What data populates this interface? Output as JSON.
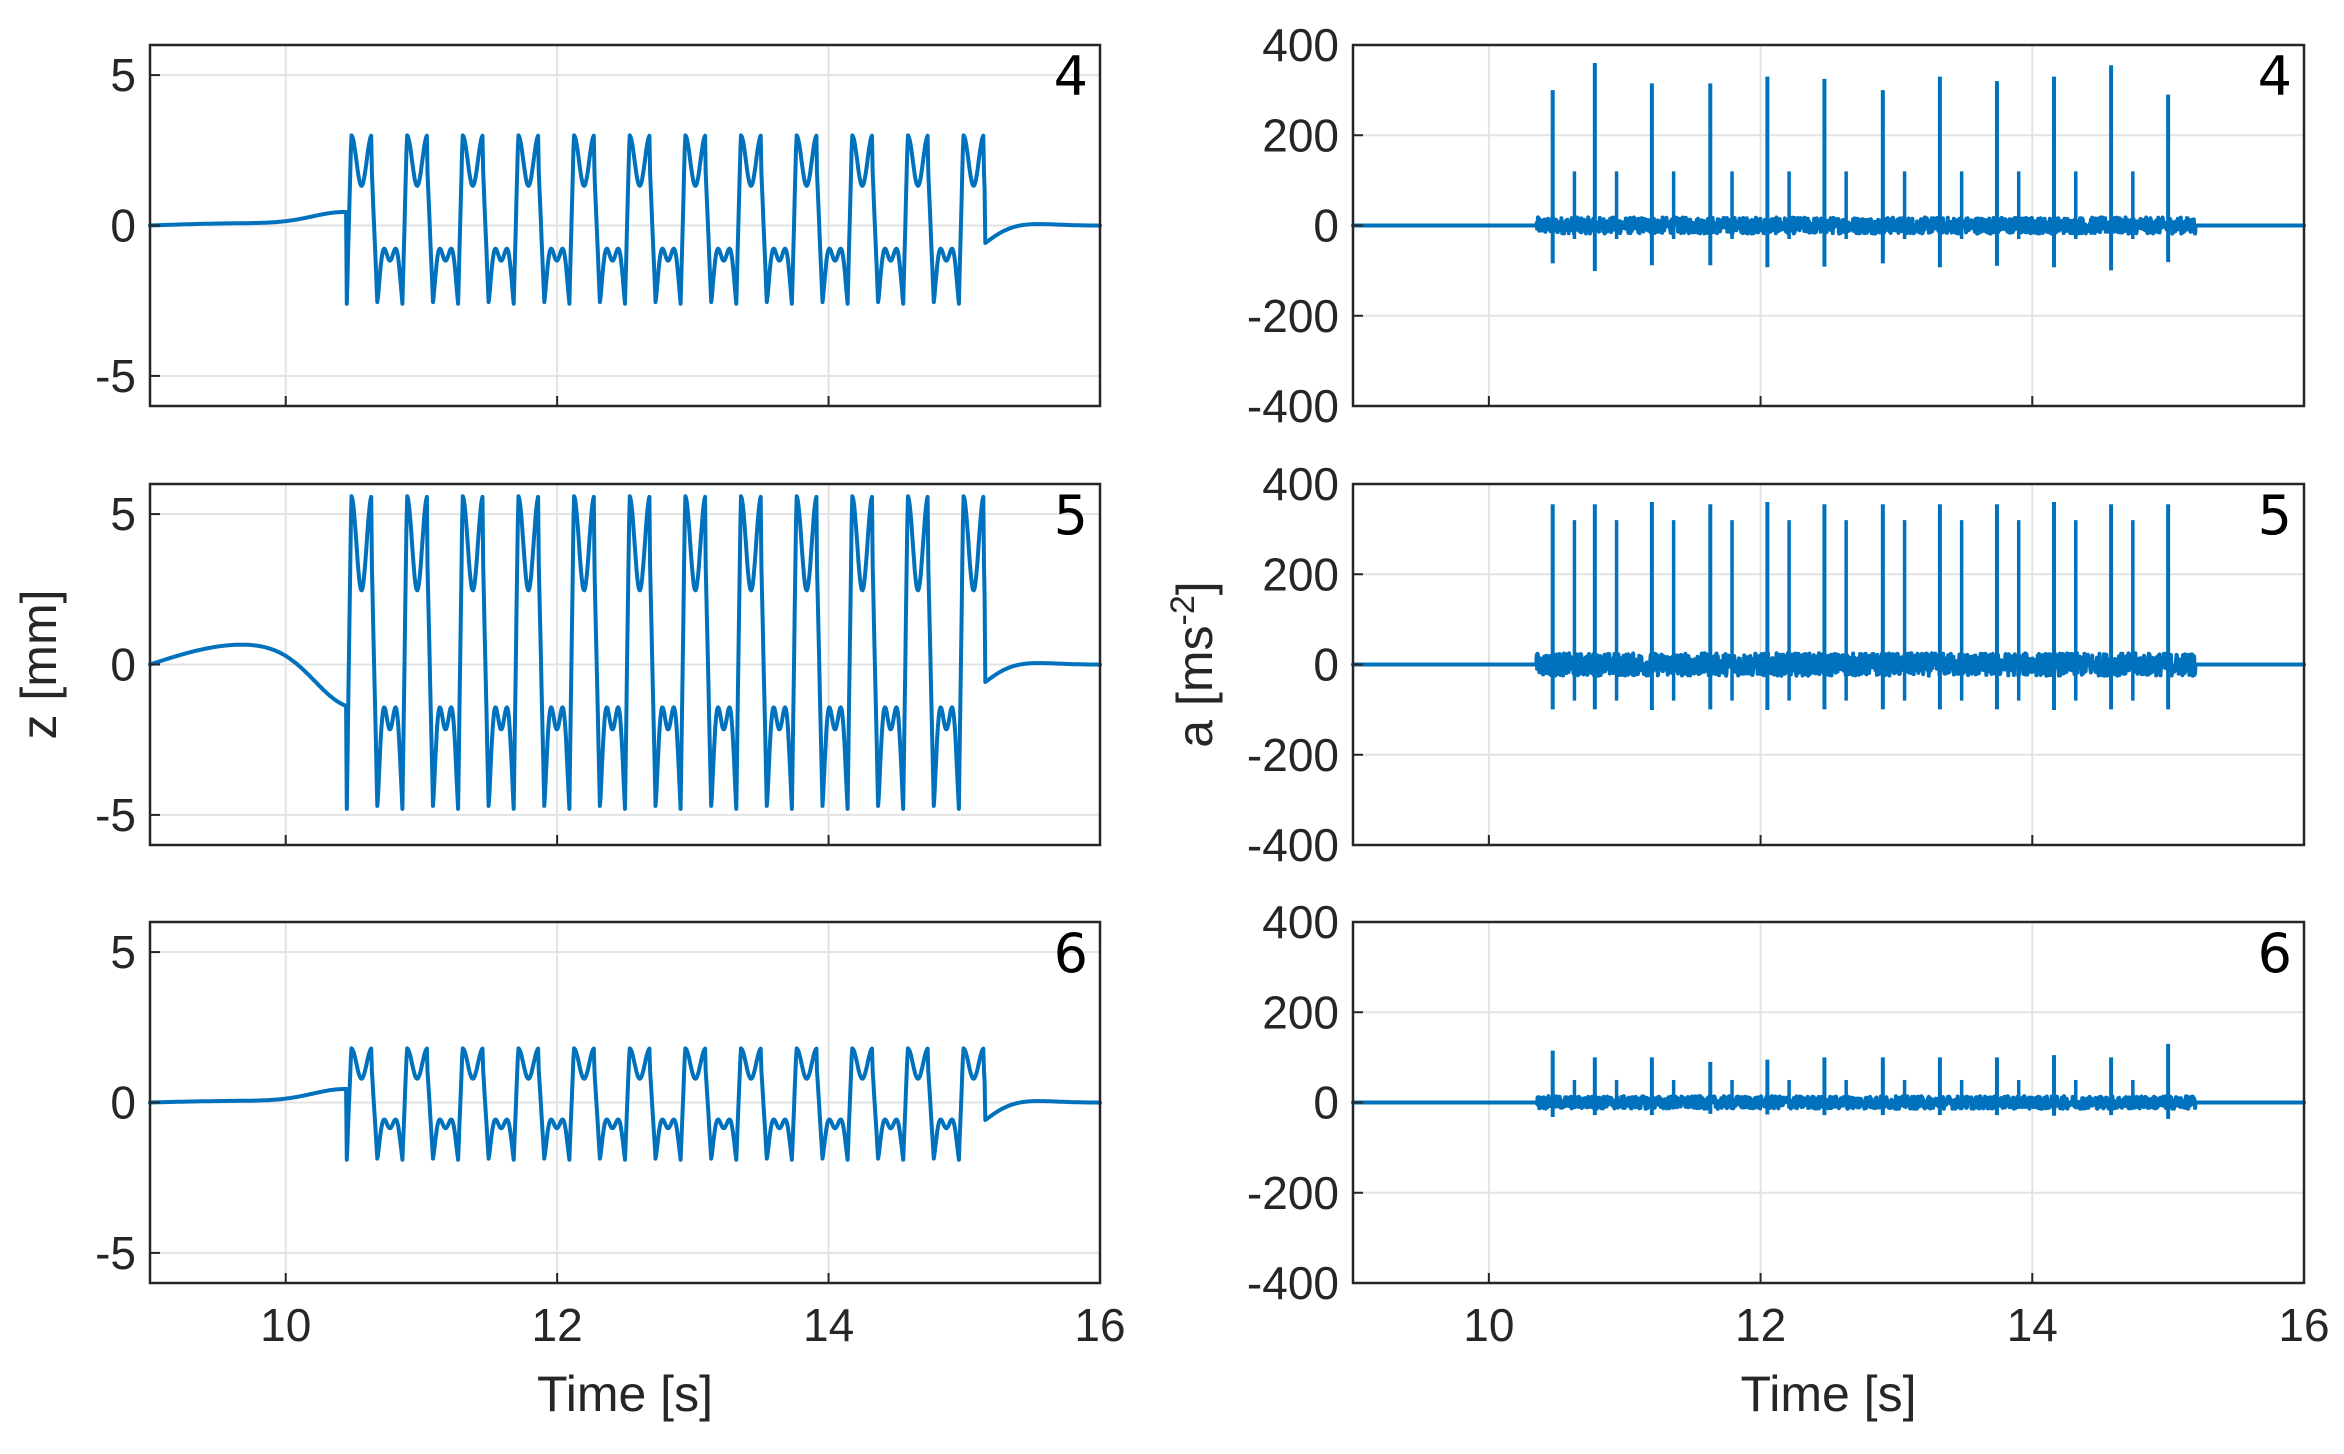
{
  "chart_data": [
    {
      "type": "line",
      "panel": "4",
      "ylabel": "",
      "xlabel": "",
      "xlim": [
        9,
        16
      ],
      "ylim": [
        -6,
        6
      ],
      "yticks": [
        5,
        0,
        -5
      ],
      "ytick_labels": [
        "5",
        "0",
        "-5"
      ],
      "xticks": [
        10,
        12,
        14,
        16
      ],
      "xtick_labels": [],
      "grid": true,
      "series": [
        {
          "name": "z",
          "color": "#0072BD",
          "kind": "disp",
          "amp_pos": 3.0,
          "amp_neg": 2.6,
          "start": 10.45,
          "end": 15.15,
          "period": 0.41
        }
      ]
    },
    {
      "type": "line",
      "panel": "5",
      "ylabel": "z [mm]",
      "xlabel": "",
      "xlim": [
        9,
        16
      ],
      "ylim": [
        -6,
        6
      ],
      "yticks": [
        5,
        0,
        -5
      ],
      "ytick_labels": [
        "5",
        "0",
        "-5"
      ],
      "xticks": [
        10,
        12,
        14,
        16
      ],
      "xtick_labels": [],
      "grid": true,
      "series": [
        {
          "name": "z",
          "color": "#0072BD",
          "kind": "disp",
          "amp_pos": 5.6,
          "amp_neg": 4.8,
          "start": 10.45,
          "end": 15.15,
          "period": 0.41
        }
      ]
    },
    {
      "type": "line",
      "panel": "6",
      "ylabel": "",
      "xlabel": "Time [s]",
      "xlim": [
        9,
        16
      ],
      "ylim": [
        -6,
        6
      ],
      "yticks": [
        5,
        0,
        -5
      ],
      "ytick_labels": [
        "5",
        "0",
        "-5"
      ],
      "xticks": [
        10,
        12,
        14,
        16
      ],
      "xtick_labels": [
        "10",
        "12",
        "14",
        "16"
      ],
      "grid": true,
      "series": [
        {
          "name": "z",
          "color": "#0072BD",
          "kind": "disp",
          "amp_pos": 1.8,
          "amp_neg": 1.9,
          "start": 10.45,
          "end": 15.15,
          "period": 0.41
        }
      ]
    },
    {
      "type": "line",
      "panel": "4",
      "ylabel": "",
      "xlabel": "",
      "xlim": [
        9,
        16
      ],
      "ylim": [
        -400,
        400
      ],
      "yticks": [
        400,
        200,
        0,
        -200,
        -400
      ],
      "ytick_labels": [
        "400",
        "200",
        "0",
        "-200",
        "-400"
      ],
      "xticks": [
        10,
        12,
        14,
        16
      ],
      "xtick_labels": [],
      "grid": true,
      "series": [
        {
          "name": "a",
          "color": "#0072BD",
          "kind": "accel",
          "peak_times": [
            10.47,
            10.78,
            11.2,
            11.63,
            12.05,
            12.47,
            12.9,
            13.32,
            13.74,
            14.16,
            14.58,
            15.0
          ],
          "peak_values": [
            300,
            360,
            315,
            315,
            330,
            325,
            300,
            330,
            320,
            330,
            355,
            290
          ],
          "secondary_value": 120,
          "noise": 18
        }
      ]
    },
    {
      "type": "line",
      "panel": "5",
      "ylabel": "a [ms-2]",
      "xlabel": "",
      "xlim": [
        9,
        16
      ],
      "ylim": [
        -400,
        400
      ],
      "yticks": [
        400,
        200,
        0,
        -200,
        -400
      ],
      "ytick_labels": [
        "400",
        "200",
        "0",
        "-200",
        "-400"
      ],
      "xticks": [
        10,
        12,
        14,
        16
      ],
      "xtick_labels": [],
      "grid": true,
      "series": [
        {
          "name": "a",
          "color": "#0072BD",
          "kind": "accel",
          "peak_times": [
            10.47,
            10.78,
            11.2,
            11.63,
            12.05,
            12.47,
            12.9,
            13.32,
            13.74,
            14.16,
            14.58,
            15.0
          ],
          "peak_values": [
            355,
            355,
            360,
            355,
            360,
            355,
            355,
            355,
            355,
            360,
            355,
            355
          ],
          "secondary_value": 320,
          "noise": 25
        }
      ]
    },
    {
      "type": "line",
      "panel": "6",
      "ylabel": "",
      "xlabel": "Time [s]",
      "xlim": [
        9,
        16
      ],
      "ylim": [
        -400,
        400
      ],
      "yticks": [
        400,
        200,
        0,
        -200,
        -400
      ],
      "ytick_labels": [
        "400",
        "200",
        "0",
        "-200",
        "-400"
      ],
      "xticks": [
        10,
        12,
        14,
        16
      ],
      "xtick_labels": [
        "10",
        "12",
        "14",
        "16"
      ],
      "grid": true,
      "series": [
        {
          "name": "a",
          "color": "#0072BD",
          "kind": "accel",
          "peak_times": [
            10.47,
            10.78,
            11.2,
            11.63,
            12.05,
            12.47,
            12.9,
            13.32,
            13.74,
            14.16,
            14.58,
            15.0
          ],
          "peak_values": [
            115,
            100,
            100,
            90,
            95,
            100,
            100,
            100,
            100,
            105,
            100,
            130
          ],
          "secondary_value": 50,
          "noise": 14
        }
      ]
    }
  ]
}
